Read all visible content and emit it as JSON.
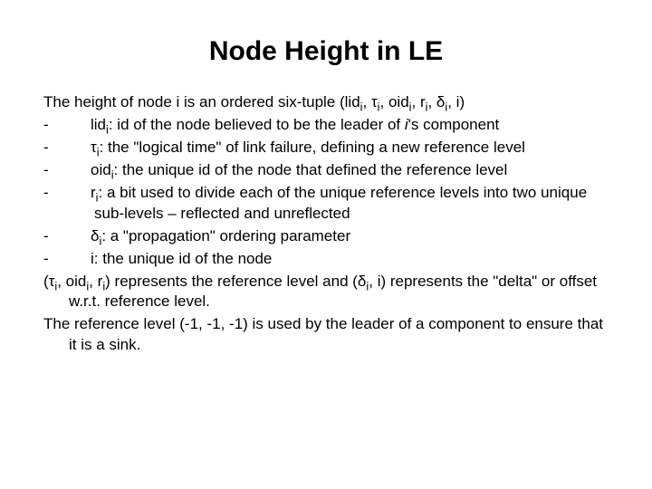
{
  "title": "Node Height in LE",
  "intro": "The height of node i is an ordered six-tuple (lid",
  "intro_tail": ", i)",
  "bullets": [
    {
      "sym": "lid",
      "sub": "i",
      "rest": ": id of the node believed to be the leader of ",
      "tail": "'s component",
      "ital": "i"
    },
    {
      "sym": "τ",
      "sub": "i",
      "rest": ": the \"logical time\" of link failure, defining a new reference level"
    },
    {
      "sym": "oid",
      "sub": "i",
      "rest": ": the unique id of the node that defined the reference level"
    },
    {
      "sym": "r",
      "sub": "i",
      "rest": ": a bit used to divide each of the unique reference levels into two unique sub-levels – reflected and unreflected"
    },
    {
      "sym": "δ",
      "sub": "i",
      "rest": ": a \"propagation\" ordering parameter"
    },
    {
      "sym": "i",
      "sub": "",
      "rest": ": the unique id of the node"
    }
  ],
  "para2a": "(τ",
  "para2b": ", oid",
  "para2c": ", r",
  "para2d": ") represents the reference level and (δ",
  "para2e": ", i) represents the \"delta\" or offset w.r.t. reference level.",
  "para3": "The reference level (-1, -1, -1) is used by the leader of a component to ensure that it is a sink.",
  "colors": {
    "background": "#ffffff",
    "text": "#000000"
  },
  "fontsize": {
    "title": 30,
    "body": 17
  }
}
